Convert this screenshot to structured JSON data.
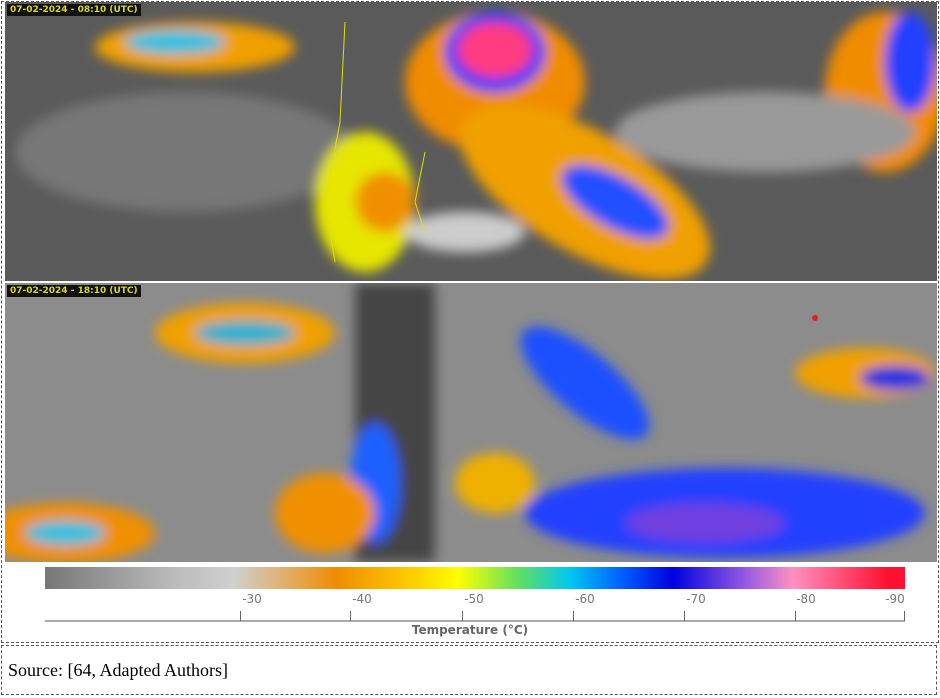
{
  "panels": [
    {
      "timestamp": "07-02-2024 - 08:10 (UTC)"
    },
    {
      "timestamp": "07-02-2024 - 18:10 (UTC)"
    }
  ],
  "colorbar": {
    "ticks": [
      "-30",
      "-40",
      "-50",
      "-60",
      "-70",
      "-80",
      "-90"
    ],
    "label": "Temperature (°C)",
    "colors": [
      "#777777",
      "#d0d0d0",
      "#f08c00",
      "#ffff00",
      "#00c8f0",
      "#0000e0",
      "#ff90c0",
      "#ff1030"
    ]
  },
  "source": "Source: [64, Adapted Authors]"
}
